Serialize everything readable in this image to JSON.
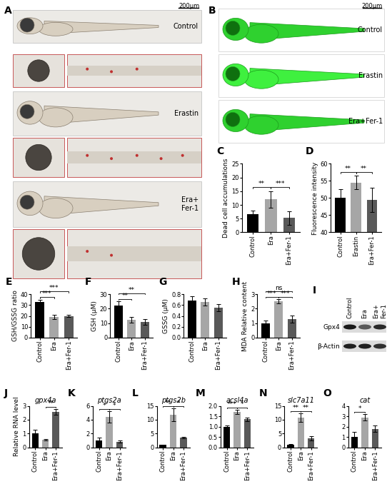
{
  "images": [
    {
      "label": "A",
      "scale_bar": "200μm",
      "style": "brightfield",
      "rows": [
        "Control",
        "Erastin",
        "Era+\nFer-1"
      ]
    },
    {
      "label": "B",
      "scale_bar": "200μm",
      "style": "fluorescence",
      "rows": [
        "Control",
        "Erastin",
        "Era+Fer-1"
      ]
    }
  ],
  "blot": {
    "label": "I",
    "lanes": [
      "Control",
      "Era",
      "Era+\nFer-1"
    ],
    "proteins": [
      "Gpx4",
      "β-Actin"
    ]
  },
  "chart_data": [
    {
      "type": "bar",
      "label": "C",
      "ylabel": "Dead cell accumulations",
      "categories": [
        "Control",
        "Era",
        "Era+Fer-1"
      ],
      "values": [
        6.5,
        12,
        5.2
      ],
      "errors": [
        1.5,
        3,
        2.5
      ],
      "colors": [
        "#000000",
        "#a6a6a6",
        "#595959"
      ],
      "ylim": [
        0,
        25
      ],
      "yticks": [
        0,
        5,
        10,
        15,
        20,
        25
      ],
      "annotations": [
        {
          "from": 0,
          "to": 1,
          "text": "**"
        },
        {
          "from": 1,
          "to": 2,
          "text": "***"
        }
      ]
    },
    {
      "type": "bar",
      "label": "D",
      "ylabel": "Fluorescence intensity",
      "categories": [
        "Control",
        "Erastin",
        "Era+Fer-1"
      ],
      "values": [
        50,
        54.5,
        49.5
      ],
      "errors": [
        2.5,
        2,
        3.5
      ],
      "colors": [
        "#000000",
        "#a6a6a6",
        "#595959"
      ],
      "ylim": [
        40,
        60
      ],
      "yticks": [
        40,
        45,
        50,
        55,
        60
      ],
      "annotations": [
        {
          "from": 0,
          "to": 1,
          "text": "**"
        },
        {
          "from": 1,
          "to": 2,
          "text": "**"
        }
      ]
    },
    {
      "type": "bar",
      "label": "E",
      "ylabel": "GSH/GSSG ratio",
      "categories": [
        "Control",
        "Era",
        "Era+Fer-1"
      ],
      "values": [
        33,
        19,
        20
      ],
      "errors": [
        2,
        2,
        1
      ],
      "colors": [
        "#000000",
        "#a6a6a6",
        "#595959"
      ],
      "ylim": [
        0,
        40
      ],
      "yticks": [
        0,
        10,
        20,
        30,
        40
      ],
      "annotations": [
        {
          "from": 0,
          "to": 1,
          "text": "***"
        },
        {
          "from": 0,
          "to": 2,
          "text": "***"
        }
      ]
    },
    {
      "type": "bar",
      "label": "F",
      "ylabel": "GSH (μM)",
      "categories": [
        "Control",
        "Era",
        "Era+Fer-1"
      ],
      "values": [
        22,
        12.5,
        11
      ],
      "errors": [
        3,
        2,
        2
      ],
      "colors": [
        "#000000",
        "#a6a6a6",
        "#595959"
      ],
      "ylim": [
        0,
        30
      ],
      "yticks": [
        0,
        10,
        20,
        30
      ],
      "annotations": [
        {
          "from": 0,
          "to": 1,
          "text": "**"
        },
        {
          "from": 0,
          "to": 2,
          "text": "**"
        }
      ]
    },
    {
      "type": "bar",
      "label": "G",
      "ylabel": "GSSG (μM)",
      "categories": [
        "Control",
        "Era",
        "Era+Fer-1"
      ],
      "values": [
        0.68,
        0.66,
        0.55
      ],
      "errors": [
        0.08,
        0.07,
        0.07
      ],
      "colors": [
        "#000000",
        "#a6a6a6",
        "#595959"
      ],
      "ylim": [
        0,
        0.8
      ],
      "yticks": [
        {
          "value": 0,
          "label": "0.0"
        },
        0.2,
        0.4,
        0.6,
        0.8
      ],
      "annotations": []
    },
    {
      "type": "bar",
      "label": "H",
      "ylabel": "MDA Relative content",
      "categories": [
        "Control",
        "Era",
        "Era+Fer-1"
      ],
      "values": [
        1,
        2.5,
        1.3
      ],
      "errors": [
        0.2,
        0.15,
        0.25
      ],
      "colors": [
        "#000000",
        "#a6a6a6",
        "#595959"
      ],
      "ylim": [
        0,
        3
      ],
      "yticks": [
        0,
        1,
        2,
        3
      ],
      "annotations": [
        {
          "from": 0,
          "to": 1,
          "text": "***"
        },
        {
          "from": 1,
          "to": 2,
          "text": "***"
        },
        {
          "from": 0,
          "to": 2,
          "text": "ns"
        }
      ]
    },
    {
      "type": "bar",
      "label": "J",
      "title": "gpx4a",
      "ylabel": "Relative RNA level",
      "categories": [
        "Control",
        "Era",
        "Era+Fer-1"
      ],
      "values": [
        1,
        0.55,
        2.55
      ],
      "errors": [
        0.3,
        0.05,
        0.2
      ],
      "colors": [
        "#000000",
        "#a6a6a6",
        "#595959"
      ],
      "ylim": [
        0,
        3
      ],
      "yticks": [
        0,
        1,
        2,
        3
      ],
      "annotations": [
        {
          "from": 1,
          "to": 2,
          "text": "**"
        }
      ]
    },
    {
      "type": "bar",
      "label": "K",
      "title": "ptgs2a",
      "categories": [
        "Control",
        "Era",
        "Era+Fer-1"
      ],
      "values": [
        1,
        4.4,
        0.85
      ],
      "errors": [
        0.4,
        0.8,
        0.15
      ],
      "colors": [
        "#000000",
        "#a6a6a6",
        "#595959"
      ],
      "ylim": [
        0,
        6
      ],
      "yticks": [
        0,
        2,
        4,
        6
      ],
      "annotations": [
        {
          "from": 0,
          "to": 1,
          "text": "*"
        },
        {
          "from": 1,
          "to": 2,
          "text": "*"
        }
      ]
    },
    {
      "type": "bar",
      "label": "L",
      "title": "ptgs2b",
      "categories": [
        "Control",
        "Era",
        "Era+Fer-1"
      ],
      "values": [
        0.9,
        11.8,
        3.6
      ],
      "errors": [
        0.1,
        2.2,
        0.3
      ],
      "colors": [
        "#000000",
        "#a6a6a6",
        "#595959"
      ],
      "ylim": [
        0,
        15
      ],
      "yticks": [
        0,
        5,
        10,
        15
      ],
      "annotations": [
        {
          "from": 0,
          "to": 1,
          "text": "**"
        },
        {
          "from": 1,
          "to": 2,
          "text": "*"
        }
      ]
    },
    {
      "type": "bar",
      "label": "M",
      "title": "acsl4a",
      "categories": [
        "Control",
        "Era",
        "Era+Fer-1"
      ],
      "values": [
        1,
        1.7,
        1.35
      ],
      "errors": [
        0.05,
        0.1,
        0.1
      ],
      "colors": [
        "#000000",
        "#a6a6a6",
        "#595959"
      ],
      "ylim": [
        0,
        2
      ],
      "yticks": [
        {
          "value": 0,
          "label": "0.0"
        },
        0.5,
        {
          "value": 1,
          "label": "1.0"
        },
        1.5,
        {
          "value": 2,
          "label": "2.0"
        }
      ],
      "annotations": [
        {
          "from": 0,
          "to": 1,
          "text": "***"
        },
        {
          "from": 1,
          "to": 2,
          "text": "*"
        }
      ]
    },
    {
      "type": "bar",
      "label": "N",
      "title": "slc7a11",
      "categories": [
        "Control",
        "Era",
        "Era+Fer-1"
      ],
      "values": [
        1,
        10.8,
        3.3
      ],
      "errors": [
        0.3,
        1.5,
        0.8
      ],
      "colors": [
        "#000000",
        "#a6a6a6",
        "#595959"
      ],
      "ylim": [
        0,
        15
      ],
      "yticks": [
        0,
        5,
        10,
        15
      ],
      "annotations": [
        {
          "from": 0,
          "to": 1,
          "text": "**"
        },
        {
          "from": 1,
          "to": 2,
          "text": "**"
        }
      ]
    },
    {
      "type": "bar",
      "label": "O",
      "title": "cat",
      "categories": [
        "Control",
        "Era",
        "Era+Fer-1"
      ],
      "values": [
        1,
        2.9,
        1.8
      ],
      "errors": [
        0.5,
        0.3,
        0.3
      ],
      "colors": [
        "#000000",
        "#a6a6a6",
        "#595959"
      ],
      "ylim": [
        0,
        4
      ],
      "yticks": [
        0,
        1,
        2,
        3,
        4
      ],
      "annotations": [
        {
          "from": 0,
          "to": 1,
          "text": "*"
        }
      ]
    }
  ]
}
